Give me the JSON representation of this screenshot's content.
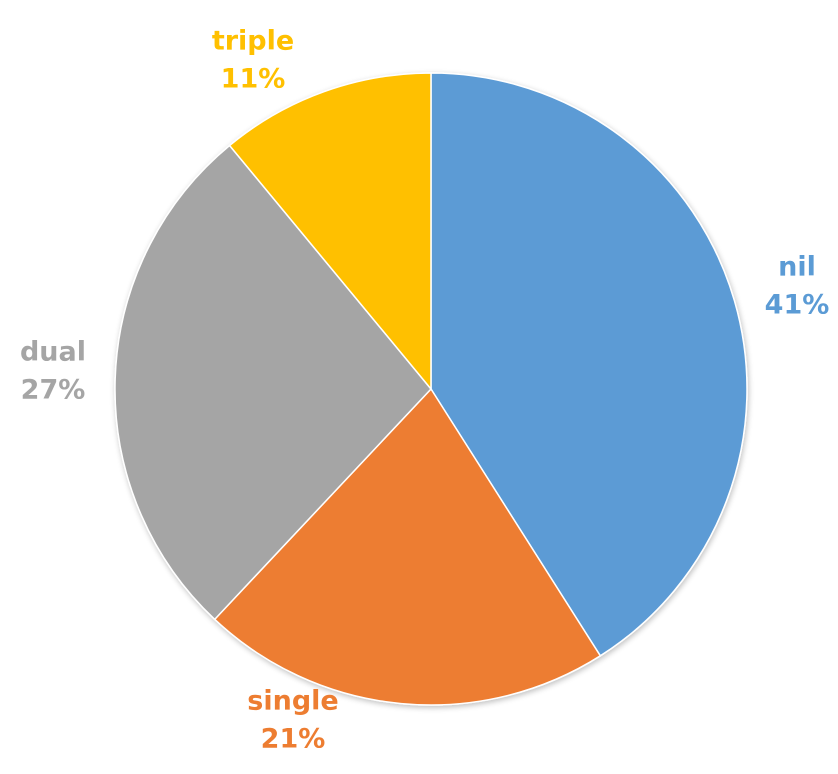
{
  "chart_data": {
    "type": "pie",
    "slices": [
      {
        "label": "nil",
        "value": 41,
        "value_label": "41%",
        "color": "#5B9BD5"
      },
      {
        "label": "single",
        "value": 21,
        "value_label": "21%",
        "color": "#ED7D31"
      },
      {
        "label": "dual",
        "value": 27,
        "value_label": "27%",
        "color": "#A5A5A5"
      },
      {
        "label": "triple",
        "value": 11,
        "value_label": "11%",
        "color": "#FFC000"
      }
    ],
    "start": "12 o'clock",
    "direction": "clockwise",
    "legend": "none",
    "labels": "category and percent outside each slice"
  }
}
